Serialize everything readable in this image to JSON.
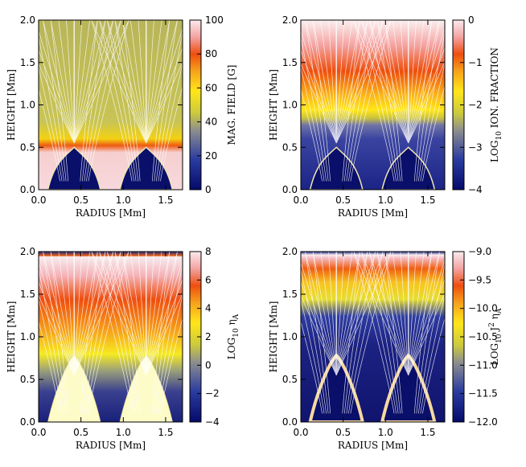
{
  "chart_data": [
    {
      "type": "heatmap",
      "xlabel": "RADIUS [Mm]",
      "ylabel": "HEIGHT [Mm]",
      "xlim": [
        0.0,
        1.7
      ],
      "ylim": [
        0.0,
        2.0
      ],
      "xticks": [
        "0.0",
        "0.5",
        "1.0",
        "1.5"
      ],
      "yticks": [
        "0.0",
        "0.5",
        "1.0",
        "1.5",
        "2.0"
      ],
      "colorbar": {
        "label": "MAG. FIELD [G]",
        "range": [
          0,
          100
        ],
        "ticks": [
          "0",
          "20",
          "40",
          "60",
          "80",
          "100"
        ]
      },
      "flux_tube_centers_Mm": [
        0.42,
        1.27
      ],
      "tube_base_half_width_Mm": 0.3,
      "tube_apex_height_Mm": 0.5,
      "field_lines": true
    },
    {
      "type": "heatmap",
      "xlabel": "RADIUS [Mm]",
      "ylabel": "HEIGHT [Mm]",
      "xlim": [
        0.0,
        1.7
      ],
      "ylim": [
        0.0,
        2.0
      ],
      "xticks": [
        "0.0",
        "0.5",
        "1.0",
        "1.5"
      ],
      "yticks": [
        "0.0",
        "0.5",
        "1.0",
        "1.5",
        "2.0"
      ],
      "colorbar": {
        "label_main": "LOG",
        "label_sub": "10",
        "label_rest": " ION. FRACTION",
        "range": [
          -4,
          0
        ],
        "ticks": [
          "−4",
          "−3",
          "−2",
          "−1",
          "0"
        ]
      },
      "flux_tube_centers_Mm": [
        0.42,
        1.27
      ],
      "field_lines": true
    },
    {
      "type": "heatmap",
      "xlabel": "RADIUS [Mm]",
      "ylabel": "HEIGHT [Mm]",
      "xlim": [
        0.0,
        1.7
      ],
      "ylim": [
        0.0,
        2.0
      ],
      "xticks": [
        "0.0",
        "0.5",
        "1.0",
        "1.5"
      ],
      "yticks": [
        "0.0",
        "0.5",
        "1.0",
        "1.5",
        "2.0"
      ],
      "colorbar": {
        "label_main": "LOG",
        "label_sub": "10",
        "label_rest": " η",
        "label_rest_sub": "A",
        "range": [
          -4,
          8
        ],
        "ticks": [
          "−4",
          "−2",
          "0",
          "2",
          "4",
          "6",
          "8"
        ]
      },
      "flux_tube_centers_Mm": [
        0.42,
        1.27
      ],
      "field_lines": true
    },
    {
      "type": "heatmap",
      "xlabel": "RADIUS [Mm]",
      "ylabel": "HEIGHT [Mm]",
      "xlim": [
        0.0,
        1.7
      ],
      "ylim": [
        0.0,
        2.0
      ],
      "xticks": [
        "0.0",
        "0.5",
        "1.0",
        "1.5"
      ],
      "yticks": [
        "0.0",
        "0.5",
        "1.0",
        "1.5",
        "2.0"
      ],
      "colorbar": {
        "label_main": "LOG",
        "label_sub": "10",
        "label_rest": " J",
        "label_sup": "2",
        "label_rest2": " η",
        "label_rest_sub": "A",
        "range": [
          -12.0,
          -9.0
        ],
        "ticks": [
          "−12.0",
          "−11.5",
          "−11.0",
          "−10.5",
          "−10.0",
          "−9.5",
          "−9.0"
        ]
      },
      "flux_tube_centers_Mm": [
        0.42,
        1.27
      ],
      "field_lines": true
    }
  ]
}
